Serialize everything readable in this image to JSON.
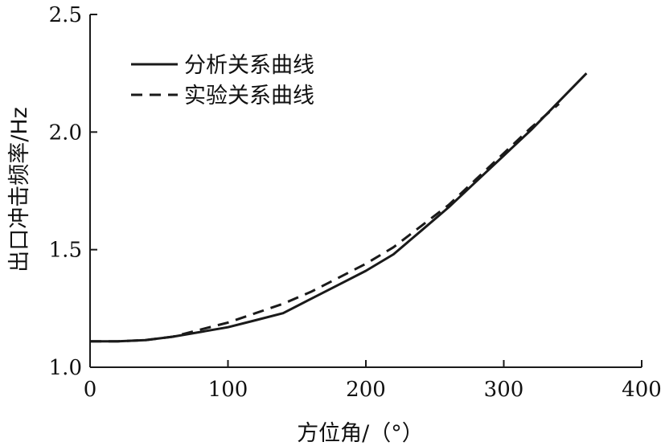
{
  "chart_data": {
    "type": "line",
    "xlabel": "方位角/（°）",
    "ylabel": "出口冲击频率/Hz",
    "xlim": [
      0,
      400
    ],
    "ylim": [
      1.0,
      2.5
    ],
    "xticks": [
      0,
      100,
      200,
      300,
      400
    ],
    "xtick_labels": [
      "0",
      "100",
      "200",
      "300",
      "400"
    ],
    "yticks": [
      1.0,
      1.5,
      2.0,
      2.5
    ],
    "ytick_labels": [
      "1.0",
      "1.5",
      "2.0",
      "2.5"
    ],
    "grid": false,
    "legend_position": "top-left",
    "series": [
      {
        "name": "分析关系曲线",
        "style": "solid",
        "color": "#1a1a1a",
        "x": [
          0,
          20,
          40,
          60,
          80,
          100,
          120,
          140,
          160,
          180,
          200,
          220,
          240,
          260,
          280,
          300,
          320,
          340,
          360
        ],
        "y": [
          1.11,
          1.11,
          1.115,
          1.13,
          1.15,
          1.17,
          1.2,
          1.23,
          1.29,
          1.35,
          1.41,
          1.48,
          1.58,
          1.68,
          1.79,
          1.9,
          2.01,
          2.13,
          2.25
        ]
      },
      {
        "name": "实验关系曲线",
        "style": "dashed",
        "color": "#1a1a1a",
        "x": [
          0,
          20,
          40,
          60,
          80,
          100,
          120,
          140,
          160,
          180,
          200,
          220,
          240,
          260,
          280,
          300,
          320,
          340
        ],
        "y": [
          1.11,
          1.11,
          1.115,
          1.13,
          1.16,
          1.19,
          1.23,
          1.27,
          1.32,
          1.38,
          1.44,
          1.51,
          1.6,
          1.69,
          1.8,
          1.91,
          2.02,
          2.12
        ]
      }
    ]
  }
}
